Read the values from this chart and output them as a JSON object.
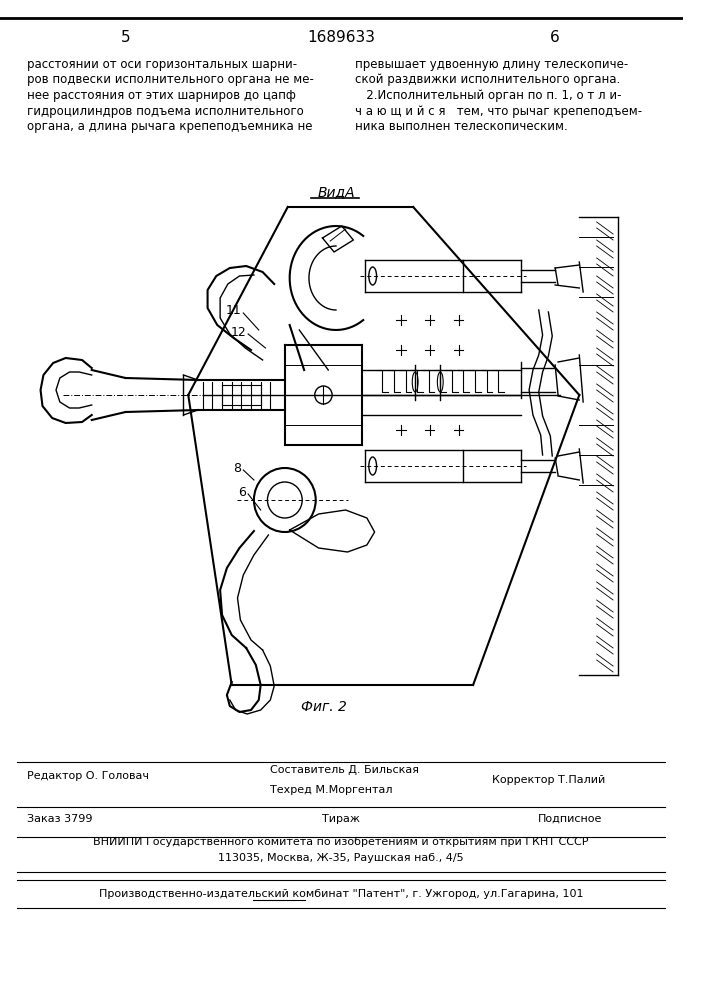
{
  "bg_color": "#ffffff",
  "page_number_left": "5",
  "page_number_center": "1689633",
  "page_number_right": "6",
  "text_left_col": [
    "расстоянии от оси горизонтальных шарни-",
    "ров подвески исполнительного органа не ме-",
    "нее расстояния от этих шарниров до цапф",
    "гидроцилиндров подъема исполнительного",
    "органа, а длина рычага крепеподъемника не"
  ],
  "text_right_col": [
    "превышает удвоенную длину телескопиче-",
    "ской раздвижки исполнительного органа.",
    "   2.Исполнительный орган по п. 1, о т л и-",
    "ч а ю щ и й с я   тем, что рычаг крепеподъем-",
    "ника выполнен телескопическим."
  ],
  "view_label": "ВидA",
  "fig_label": "Фиг. 2",
  "label_11": "11",
  "label_12": "12",
  "label_8": "8",
  "label_6": "6",
  "footer_editor": "Редактор О. Головач",
  "footer_composer": "Составитель Д. Бильская",
  "footer_techred": "Техред М.Моргентал",
  "footer_corrector": "Корректор Т.Палий",
  "footer_order": "Заказ 3799",
  "footer_tirazh": "Тираж",
  "footer_podpisnoe": "Подписное",
  "footer_vniip": "ВНИИПИ Государственного комитета по изобретениям и открытиям при ГКНТ СССР",
  "footer_address": "113035, Москва, Ж-35, Раушская наб., 4/5",
  "footer_publisher": "Производственно-издательский комбинат \"Патент\", г. Ужгород, ул.Гагарина, 101"
}
